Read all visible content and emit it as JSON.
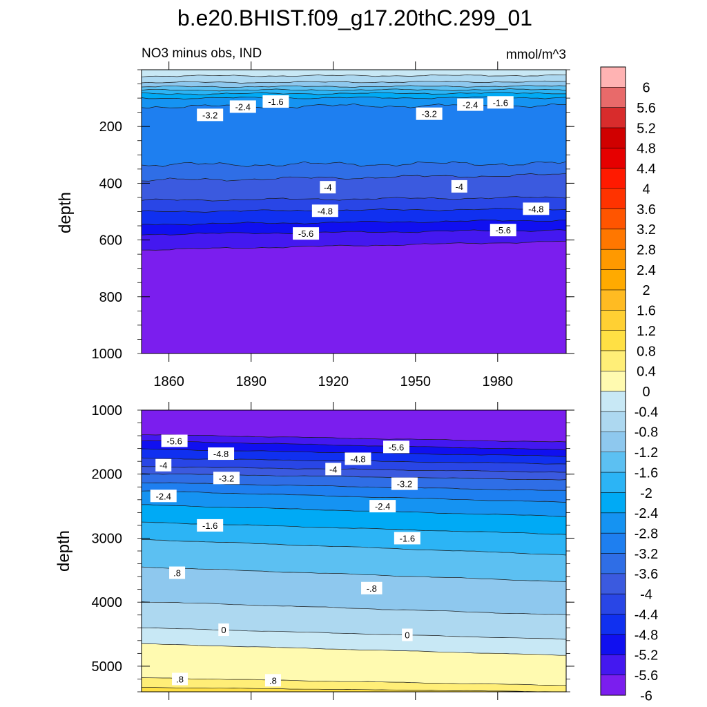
{
  "chart_data": {
    "type": "heatmap",
    "title": "b.e20.BHIST.f09_g17.20thC.299_01",
    "subtitle_left": "NO3 minus obs, IND",
    "subtitle_right": "mmol/m^3",
    "colorbar": {
      "levels": [
        "6",
        "5.6",
        "5.2",
        "4.8",
        "4.4",
        "4",
        "3.6",
        "3.2",
        "2.8",
        "2.4",
        "2",
        "1.6",
        "1.2",
        "0.8",
        "0.4",
        "0",
        "-0.4",
        "-0.8",
        "-1.2",
        "-1.6",
        "-2",
        "-2.4",
        "-2.8",
        "-3.2",
        "-3.6",
        "-4",
        "-4.4",
        "-4.8",
        "-5.2",
        "-5.6",
        "-6"
      ],
      "colors": [
        "#FFB3B3",
        "#E86A6A",
        "#D82C2C",
        "#D00000",
        "#E60000",
        "#FF1A00",
        "#FF3300",
        "#FF5500",
        "#FF7700",
        "#FF9900",
        "#FFAA00",
        "#FFBB22",
        "#FFD033",
        "#FFE044",
        "#FFEE77",
        "#FFFAB0",
        "#C8E8F5",
        "#ADD8F0",
        "#8EC8EE",
        "#5CC0F2",
        "#2CB4F5",
        "#00AAF5",
        "#1593F2",
        "#1E7FF0",
        "#2F6EE6",
        "#3B5ADF",
        "#2946E6",
        "#1030F0",
        "#1010F0",
        "#4418F0",
        "#7B1EEE"
      ]
    },
    "panels": [
      {
        "ylabel": "depth",
        "y_ticks": [
          "200",
          "400",
          "600",
          "800",
          "1000"
        ],
        "x_ticks": [
          "1860",
          "1890",
          "1920",
          "1950",
          "1980"
        ],
        "x_range": [
          1850,
          2005
        ],
        "y_range": [
          0,
          1000
        ],
        "contour_labels": [
          {
            "text": "-2.4",
            "x": 1887,
            "y": 130
          },
          {
            "text": "-1.6",
            "x": 1899,
            "y": 112
          },
          {
            "text": "-3.2",
            "x": 1875,
            "y": 159
          },
          {
            "text": "-3.2",
            "x": 1955,
            "y": 155
          },
          {
            "text": "-2.4",
            "x": 1970,
            "y": 123
          },
          {
            "text": "-1.6",
            "x": 1981,
            "y": 115
          },
          {
            "text": "-4",
            "x": 1918,
            "y": 414
          },
          {
            "text": "-4",
            "x": 1966,
            "y": 411
          },
          {
            "text": "-4.8",
            "x": 1917,
            "y": 497
          },
          {
            "text": "-4.8",
            "x": 1994,
            "y": 490
          },
          {
            "text": "-5.6",
            "x": 1910,
            "y": 577
          },
          {
            "text": "-5.6",
            "x": 1982,
            "y": 565
          }
        ]
      },
      {
        "ylabel": "depth",
        "y_ticks": [
          "1000",
          "2000",
          "3000",
          "4000",
          "5000"
        ],
        "x_range": [
          1850,
          2005
        ],
        "y_range": [
          1000,
          5400
        ],
        "contour_labels": [
          {
            "text": "-5.6",
            "x": 1862,
            "y": 1480
          },
          {
            "text": "-5.6",
            "x": 1943,
            "y": 1575
          },
          {
            "text": "-4.8",
            "x": 1879,
            "y": 1680
          },
          {
            "text": "-4.8",
            "x": 1929,
            "y": 1760
          },
          {
            "text": "-4",
            "x": 1858,
            "y": 1860
          },
          {
            "text": "-4",
            "x": 1920,
            "y": 1920
          },
          {
            "text": "-3.2",
            "x": 1881,
            "y": 2060
          },
          {
            "text": "-3.2",
            "x": 1946,
            "y": 2150
          },
          {
            "text": "-2.4",
            "x": 1858,
            "y": 2340
          },
          {
            "text": "-2.4",
            "x": 1938,
            "y": 2500
          },
          {
            "text": "-1.6",
            "x": 1875,
            "y": 2800
          },
          {
            "text": "-1.6",
            "x": 1947,
            "y": 3000
          },
          {
            "text": ".8",
            "x": 1863,
            "y": 3540
          },
          {
            "text": "-.8",
            "x": 1934,
            "y": 3780
          },
          {
            "text": "0",
            "x": 1880,
            "y": 4430
          },
          {
            "text": "0",
            "x": 1947,
            "y": 4510
          },
          {
            "text": ".8",
            "x": 1864,
            "y": 5200
          },
          {
            "text": ".8",
            "x": 1898,
            "y": 5220
          }
        ]
      }
    ],
    "grid": false,
    "legend": "right"
  }
}
